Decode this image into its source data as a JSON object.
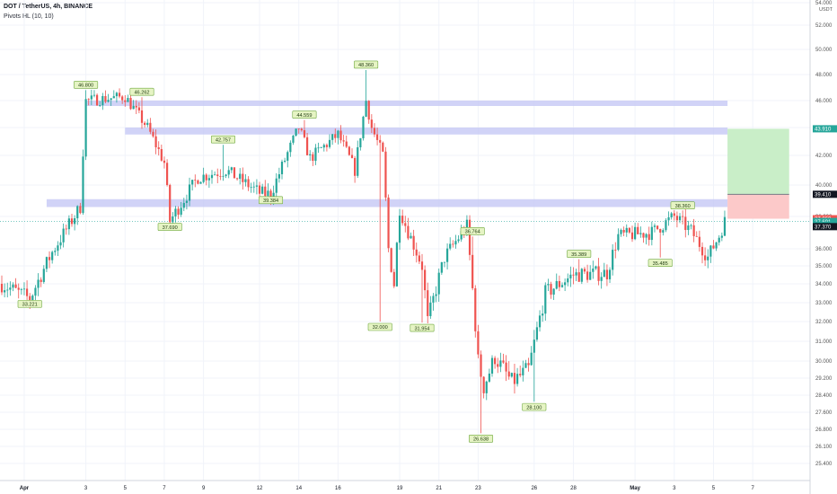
{
  "header": {
    "title": "DOT / TetherUS, 4h, BINANCE",
    "indicator": "Pivots HL (10, 10)"
  },
  "colors": {
    "up": "#26a69a",
    "down": "#ef5350",
    "zone": "#c5c8f5",
    "target": "#c9eec8",
    "stop": "#fcc9c9",
    "pivot_bg": "#e6f4c4",
    "pivot_border": "#6fa83f"
  },
  "chart_data": {
    "type": "candlestick",
    "y_axis": {
      "unit": "USDT",
      "ylim": [
        24.6,
        54.0
      ],
      "ticks": [
        "25.400",
        "26.100",
        "26.800",
        "27.600",
        "28.400",
        "29.200",
        "30.000",
        "31.000",
        "32.000",
        "33.000",
        "34.000",
        "35.000",
        "36.000",
        "38.000",
        "40.000",
        "42.000",
        "44.000",
        "46.000",
        "48.000",
        "50.000",
        "52.000",
        "54.000"
      ],
      "price_labels": [
        {
          "text": "43.910",
          "value": 43.91,
          "color": "#26a69a"
        },
        {
          "text": "39.410",
          "value": 39.41,
          "color": "#131722"
        },
        {
          "text": "37.860",
          "value": 37.86,
          "color": "#ef5350"
        },
        {
          "text": "37.691",
          "value": 37.691,
          "color": "#26a69a"
        },
        {
          "text": "33:07",
          "value": 37.46,
          "color": "#26a69a"
        },
        {
          "text": "37.370",
          "value": 37.37,
          "color": "#131722"
        }
      ]
    },
    "x_axis": {
      "ticks": [
        "Apr",
        "3",
        "5",
        "7",
        "9",
        "12",
        "14",
        "16",
        "19",
        "21",
        "23",
        "26",
        "28",
        "May",
        "3",
        "5",
        "7"
      ],
      "bold": [
        "Apr",
        "May"
      ]
    },
    "x_tick_index": [
      8,
      30,
      44,
      58,
      72,
      92,
      106,
      120,
      142,
      156,
      170,
      190,
      204,
      226,
      240,
      254,
      268
    ],
    "bar_count": 259,
    "anchors": [
      [
        0,
        34.0
      ],
      [
        10,
        33.2
      ],
      [
        18,
        35.8
      ],
      [
        28,
        38.6
      ],
      [
        30,
        46.0
      ],
      [
        44,
        46.3
      ],
      [
        52,
        44.0
      ],
      [
        58,
        41.5
      ],
      [
        60,
        37.7
      ],
      [
        70,
        40.5
      ],
      [
        80,
        41.0
      ],
      [
        92,
        39.5
      ],
      [
        96,
        39.4
      ],
      [
        106,
        44.0
      ],
      [
        110,
        41.8
      ],
      [
        120,
        43.5
      ],
      [
        126,
        41.0
      ],
      [
        130,
        46.0
      ],
      [
        132,
        44.0
      ],
      [
        136,
        42.0
      ],
      [
        138,
        36.0
      ],
      [
        140,
        34.0
      ],
      [
        142,
        38.5
      ],
      [
        144,
        37.5
      ],
      [
        150,
        35.0
      ],
      [
        152,
        32.0
      ],
      [
        158,
        35.5
      ],
      [
        166,
        37.4
      ],
      [
        170,
        30.0
      ],
      [
        172,
        28.8
      ],
      [
        176,
        30.2
      ],
      [
        182,
        29.0
      ],
      [
        188,
        29.6
      ],
      [
        194,
        33.5
      ],
      [
        204,
        34.5
      ],
      [
        216,
        34.6
      ],
      [
        220,
        36.8
      ],
      [
        232,
        37.0
      ],
      [
        240,
        38.0
      ],
      [
        246,
        37.1
      ],
      [
        252,
        35.5
      ],
      [
        256,
        36.8
      ],
      [
        258,
        37.69
      ]
    ],
    "pivots": [
      {
        "label": "46.800",
        "bar": 30,
        "value": 46.8,
        "type": "high"
      },
      {
        "label": "46.262",
        "bar": 50,
        "value": 46.26,
        "type": "high"
      },
      {
        "label": "37.690",
        "bar": 60,
        "value": 37.69,
        "type": "low"
      },
      {
        "label": "42.757",
        "bar": 79,
        "value": 42.76,
        "type": "high"
      },
      {
        "label": "39.384",
        "bar": 96,
        "value": 39.38,
        "type": "low"
      },
      {
        "label": "44.559",
        "bar": 108,
        "value": 44.56,
        "type": "high"
      },
      {
        "label": "48.360",
        "bar": 130,
        "value": 48.36,
        "type": "high"
      },
      {
        "label": "32.000",
        "bar": 135,
        "value": 32.0,
        "type": "low"
      },
      {
        "label": "31.954",
        "bar": 150,
        "value": 31.95,
        "type": "low"
      },
      {
        "label": "26.638",
        "bar": 171,
        "value": 26.64,
        "type": "low"
      },
      {
        "label": "36.764",
        "bar": 168,
        "value": 36.76,
        "type": "high"
      },
      {
        "label": "35.389",
        "bar": 206,
        "value": 35.39,
        "type": "high"
      },
      {
        "label": "28.100",
        "bar": 190,
        "value": 28.1,
        "type": "low"
      },
      {
        "label": "35.485",
        "bar": 235,
        "value": 35.49,
        "type": "low"
      },
      {
        "label": "38.360",
        "bar": 243,
        "value": 38.36,
        "type": "high"
      },
      {
        "label": "33.221",
        "bar": 10,
        "value": 33.22,
        "type": "low"
      }
    ],
    "zones": [
      {
        "from_bar": 30,
        "to_bar": 259,
        "low": 45.6,
        "high": 46.0
      },
      {
        "from_bar": 44,
        "to_bar": 259,
        "low": 43.5,
        "high": 44.0
      },
      {
        "from_bar": 16,
        "to_bar": 259,
        "low": 38.6,
        "high": 39.1
      }
    ],
    "position": {
      "from_bar": 259,
      "to_bar": 281,
      "entry": 37.86,
      "target": 43.91,
      "stop": 39.41
    },
    "last_price": 37.691
  }
}
